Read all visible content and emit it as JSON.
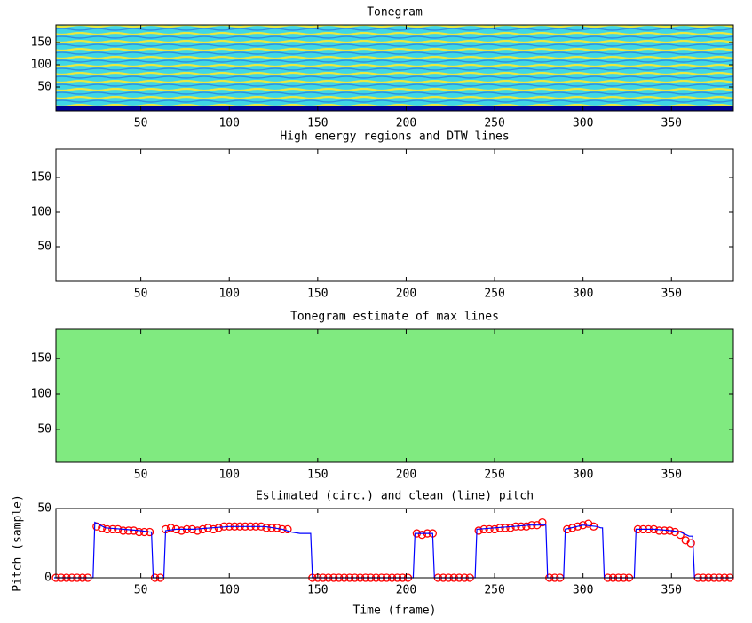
{
  "chart_data": [
    {
      "type": "heatmap",
      "title": "Tonegram",
      "xlim": [
        2,
        385
      ],
      "ylim": [
        -4,
        190
      ],
      "xticks": [
        50,
        100,
        150,
        200,
        250,
        300,
        350
      ],
      "yticks": [
        50,
        100,
        150
      ]
    },
    {
      "type": "heatmap",
      "title": "High energy regions and DTW lines",
      "xlim": [
        2,
        385
      ],
      "ylim": [
        0,
        191
      ],
      "xticks": [
        50,
        100,
        150,
        200,
        250,
        300,
        350
      ],
      "yticks": [
        50,
        100,
        150
      ]
    },
    {
      "type": "heatmap",
      "title": "Tonegram estimate of max lines",
      "xlim": [
        2,
        385
      ],
      "ylim": [
        4,
        191
      ],
      "xticks": [
        50,
        100,
        150,
        200,
        250,
        300,
        350
      ],
      "yticks": [
        50,
        100,
        150
      ]
    },
    {
      "type": "line",
      "title": "Estimated (circ.) and clean (line) pitch",
      "xlabel": "Time (frame)",
      "ylabel": "Pitch (sample)",
      "xlim": [
        2,
        385
      ],
      "ylim": [
        0,
        50
      ],
      "xticks": [
        50,
        100,
        150,
        200,
        250,
        300,
        350
      ],
      "yticks": [
        0,
        50
      ],
      "series": [
        {
          "color": "#ff0000",
          "marker": "circle",
          "x": [
            2,
            5,
            8,
            11,
            14,
            17,
            20,
            25,
            28,
            31,
            34,
            37,
            40,
            43,
            46,
            49,
            52,
            55,
            58,
            61,
            64,
            67,
            70,
            73,
            76,
            79,
            82,
            85,
            88,
            91,
            94,
            97,
            100,
            103,
            106,
            109,
            112,
            115,
            118,
            121,
            124,
            127,
            130,
            133,
            147,
            150,
            153,
            156,
            159,
            162,
            165,
            168,
            171,
            174,
            177,
            180,
            183,
            186,
            189,
            192,
            195,
            198,
            201,
            206,
            209,
            212,
            215,
            218,
            221,
            224,
            227,
            230,
            233,
            236,
            241,
            244,
            247,
            250,
            253,
            256,
            259,
            262,
            265,
            268,
            271,
            274,
            277,
            281,
            284,
            287,
            291,
            294,
            297,
            300,
            303,
            306,
            314,
            317,
            320,
            323,
            326,
            331,
            334,
            337,
            340,
            343,
            346,
            349,
            352,
            355,
            358,
            361,
            365,
            368,
            371,
            374,
            377,
            380,
            383
          ],
          "values": [
            0,
            0,
            0,
            0,
            0,
            0,
            0,
            37,
            36,
            35,
            35,
            35,
            34,
            34,
            34,
            33,
            33,
            33,
            0,
            0,
            35,
            36,
            35,
            34,
            35,
            35,
            34,
            35,
            36,
            35,
            36,
            37,
            37,
            37,
            37,
            37,
            37,
            37,
            37,
            36,
            36,
            36,
            35,
            35,
            0,
            0,
            0,
            0,
            0,
            0,
            0,
            0,
            0,
            0,
            0,
            0,
            0,
            0,
            0,
            0,
            0,
            0,
            0,
            32,
            31,
            32,
            32,
            0,
            0,
            0,
            0,
            0,
            0,
            0,
            34,
            35,
            35,
            35,
            36,
            36,
            36,
            37,
            37,
            37,
            38,
            38,
            40,
            0,
            0,
            0,
            35,
            36,
            37,
            38,
            39,
            37,
            0,
            0,
            0,
            0,
            0,
            35,
            35,
            35,
            35,
            34,
            34,
            34,
            33,
            31,
            27,
            25,
            0,
            0,
            0,
            0,
            0,
            0,
            0
          ]
        },
        {
          "color": "#0000ff",
          "marker": "line",
          "x": [
            1,
            23,
            24,
            30,
            40,
            50,
            55,
            56,
            57,
            63,
            64,
            70,
            80,
            90,
            100,
            110,
            120,
            125,
            130,
            135,
            140,
            145,
            146,
            147,
            204,
            205,
            215,
            216,
            239,
            240,
            250,
            260,
            270,
            278,
            279,
            280,
            289,
            290,
            300,
            308,
            310,
            311,
            312,
            329,
            330,
            340,
            350,
            355,
            360,
            362,
            363,
            385
          ],
          "values": [
            0,
            0,
            40,
            36,
            35,
            34,
            33,
            33,
            0,
            0,
            34,
            35,
            35,
            36,
            37,
            37,
            37,
            36,
            35,
            33,
            32,
            32,
            32,
            0,
            0,
            32,
            32,
            0,
            0,
            35,
            36,
            37,
            38,
            38,
            38,
            0,
            0,
            35,
            38,
            37,
            36,
            36,
            0,
            0,
            35,
            35,
            34,
            33,
            30,
            30,
            0,
            0
          ]
        }
      ]
    }
  ]
}
